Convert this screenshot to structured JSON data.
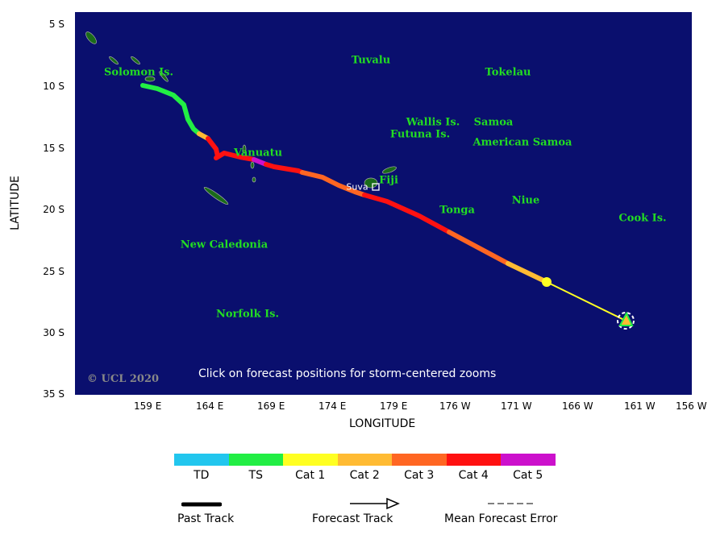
{
  "map": {
    "labels": [
      "Tuvalu",
      "Tokelau",
      "Solomon Is.",
      "Wallis Is.",
      "Samoa",
      "Futuna Is.",
      "American Samoa",
      "Vanuatu",
      "Fiji",
      "Suva",
      "Tonga",
      "Niue",
      "Cook Is.",
      "New Caledonia",
      "Norfolk Is."
    ],
    "copyright": "© UCL 2020",
    "hint": "Click on forecast positions for storm-centered zooms",
    "ocean_color": "#0a0f6e",
    "land_color": "#1a6b1a"
  },
  "axes": {
    "ylabel": "LATITUDE",
    "xlabel": "LONGITUDE",
    "yticks": [
      "5 S",
      "10 S",
      "15 S",
      "20 S",
      "25 S",
      "30 S",
      "35 S"
    ],
    "xticks": [
      "159 E",
      "164 E",
      "169 E",
      "174 E",
      "179 E",
      "176 W",
      "171 W",
      "166 W",
      "161 W",
      "156 W"
    ]
  },
  "legend": {
    "categories": [
      {
        "label": "TD",
        "color": "#22c6ee"
      },
      {
        "label": "TS",
        "color": "#22ee44"
      },
      {
        "label": "Cat 1",
        "color": "#ffff22"
      },
      {
        "label": "Cat 2",
        "color": "#ffbb33"
      },
      {
        "label": "Cat 3",
        "color": "#ff6622"
      },
      {
        "label": "Cat 4",
        "color": "#ff1111"
      },
      {
        "label": "Cat 5",
        "color": "#cc11cc"
      }
    ],
    "past_track": "Past Track",
    "forecast_track": "Forecast Track",
    "error": "Mean Forecast Error"
  }
}
